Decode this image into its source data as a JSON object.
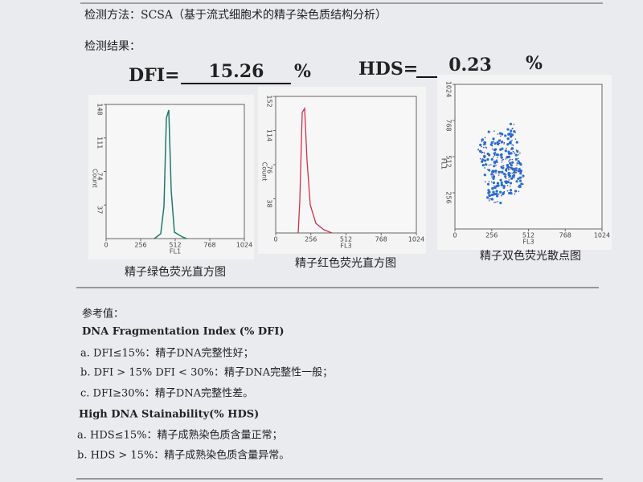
{
  "header": {
    "method": "检测方法：SCSA（基于流式细胞术的精子染色质结构分析）",
    "result_title": "检测结果："
  },
  "results": {
    "dfi_label": "DFI=",
    "dfi_value": 15.26,
    "dfi_unit": "%",
    "hds_label": "HDS=",
    "hds_value": 0.23,
    "hds_unit": "%"
  },
  "plots": [
    {
      "y_ticks": [
        148,
        111,
        74,
        37
      ],
      "y_label": "Count",
      "x_ticks": [
        0,
        256,
        512,
        768,
        1024
      ],
      "x_label": "FL1",
      "caption": "精子绿色荧光直方图"
    },
    {
      "y_ticks": [
        152,
        114,
        76,
        38
      ],
      "y_label": "Count",
      "x_ticks": [
        0,
        256,
        512,
        768,
        1024
      ],
      "x_label": "FL3",
      "caption": "精子红色荧光直方图"
    },
    {
      "y_ticks": [
        1024,
        768,
        512,
        256
      ],
      "y_label": "FL1",
      "x_ticks": [
        0,
        256,
        512,
        768,
        1024
      ],
      "x_label": "FL3",
      "caption": "精子双色荧光散点图"
    }
  ],
  "reference": {
    "title": "参考值：",
    "dfi_heading": "DNA Fragmentation Index (% DFI)",
    "dfi_items": [
      "a. DFI≤15%：精子DNA完整性好；",
      "b. DFI > 15% DFI < 30%：精子DNA完整性一般；",
      "c. DFI≥30%：精子DNA完整性差。"
    ],
    "hds_heading": "High DNA Stainability(% HDS)",
    "hds_items": [
      "a. HDS≤15%：精子成熟染色质含量正常；",
      "b. HDS > 15%：精子成熟染色质含量异常。"
    ]
  }
}
